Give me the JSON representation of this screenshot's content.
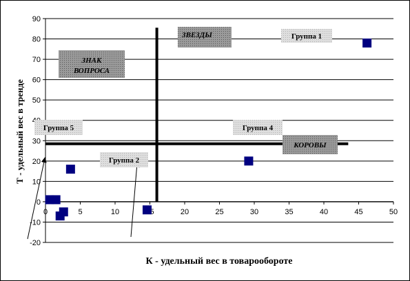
{
  "chart_data": {
    "type": "scatter",
    "xlabel": "К - удельный вес в товарообороте",
    "ylabel": "Т - удельный вес в тренде",
    "xlim": [
      0,
      50
    ],
    "ylim": [
      -20,
      90
    ],
    "x_ticks": [
      0,
      5,
      10,
      15,
      20,
      25,
      30,
      35,
      40,
      45,
      50
    ],
    "y_ticks": [
      -20,
      -10,
      0,
      10,
      20,
      30,
      40,
      50,
      60,
      70,
      80,
      90
    ],
    "grid": "horizontal",
    "points": [
      {
        "x": 46.2,
        "y": 78
      },
      {
        "x": 29.2,
        "y": 20
      },
      {
        "x": 3.6,
        "y": 16
      },
      {
        "x": 0.6,
        "y": 1
      },
      {
        "x": 1.5,
        "y": 1
      },
      {
        "x": 2.6,
        "y": -5
      },
      {
        "x": 2.1,
        "y": -7
      },
      {
        "x": 14.6,
        "y": -4
      }
    ],
    "divider_x": 16,
    "divider_y": 28.5,
    "quadrant_labels": [
      {
        "text": "ЗВЕЗДЫ",
        "style": "dark"
      },
      {
        "text": "ЗНАК ВОПРОСА",
        "style": "dark"
      },
      {
        "text": "КОРОВЫ",
        "style": "dark"
      }
    ],
    "group_labels": [
      {
        "text": "Группа 1"
      },
      {
        "text": "Группа 2"
      },
      {
        "text": "Группа 4"
      },
      {
        "text": "Группа 5"
      }
    ],
    "marker_color": "#000080",
    "divider_color": "#000000"
  }
}
